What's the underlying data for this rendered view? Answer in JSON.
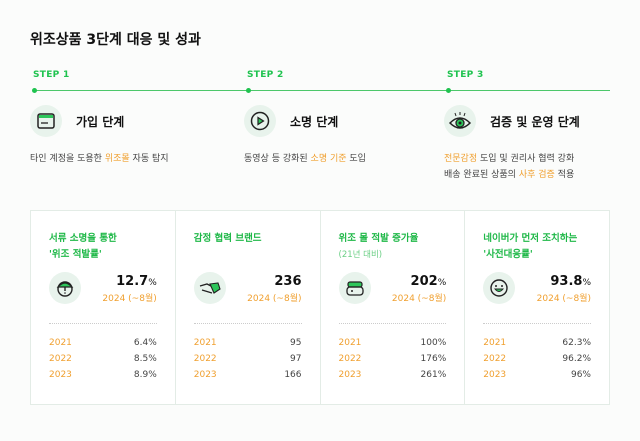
{
  "title": "위조상품 3단계 대응 및 성과",
  "steps": [
    {
      "label": "STEP 1",
      "name": "가입 단계",
      "icon": "card-window-icon",
      "desc": [
        [
          "타인 계정을 도용한 ",
          ""
        ],
        [
          "위조몰",
          "hl"
        ],
        [
          " 자동 탐지",
          ""
        ]
      ]
    },
    {
      "label": "STEP 2",
      "name": "소명 단계",
      "icon": "play-icon",
      "desc": [
        [
          "동영상 등 강화된 ",
          ""
        ],
        [
          "소명 기준",
          "hl"
        ],
        [
          " 도입",
          ""
        ]
      ]
    },
    {
      "label": "STEP 3",
      "name": "검증 및 운영 단계",
      "icon": "eye-icon",
      "desc": [
        [
          "전문감정",
          "hl"
        ],
        [
          " 도입 및 권리사 협력 강화",
          ""
        ]
      ],
      "desc2": [
        [
          "배송 완료된 상품의 ",
          ""
        ],
        [
          "사후 검증",
          "hl"
        ],
        [
          " 적용",
          ""
        ]
      ]
    }
  ],
  "cards": [
    {
      "title1": "서류 소명을 통한",
      "title2": "'위조 적발률'",
      "sub": "",
      "icon": "alert-face-icon",
      "value": "12.7",
      "unit": "%",
      "period": "2024 (~8월)",
      "rows": [
        {
          "year": "2021",
          "value": "6.4%"
        },
        {
          "year": "2022",
          "value": "8.5%"
        },
        {
          "year": "2023",
          "value": "8.9%"
        }
      ]
    },
    {
      "title1": "감정 협력 브랜드",
      "title2": "",
      "sub": "",
      "icon": "handshake-icon",
      "value": "236",
      "unit": "",
      "period": "2024 (~8월)",
      "rows": [
        {
          "year": "2021",
          "value": "95"
        },
        {
          "year": "2022",
          "value": "97"
        },
        {
          "year": "2023",
          "value": "166"
        }
      ]
    },
    {
      "title1": "위조 몰 적발 증가율",
      "title2": "",
      "sub": "(21년 대비)",
      "icon": "shop-icon",
      "value": "202",
      "unit": "%",
      "period": "2024 (~8월)",
      "rows": [
        {
          "year": "2021",
          "value": "100%"
        },
        {
          "year": "2022",
          "value": "176%"
        },
        {
          "year": "2023",
          "value": "261%"
        }
      ]
    },
    {
      "title1": "네이버가 먼저 조치하는",
      "title2": "'사전대응률'",
      "sub": "",
      "icon": "smile-icon",
      "value": "93.8",
      "unit": "%",
      "period": "2024 (~8월)",
      "rows": [
        {
          "year": "2021",
          "value": "62.3%"
        },
        {
          "year": "2022",
          "value": "96.2%"
        },
        {
          "year": "2023",
          "value": "96%"
        }
      ]
    }
  ],
  "colors": {
    "accent": "#1fc34f",
    "highlight": "#f0a030",
    "iconBg": "#e8f3ec"
  }
}
